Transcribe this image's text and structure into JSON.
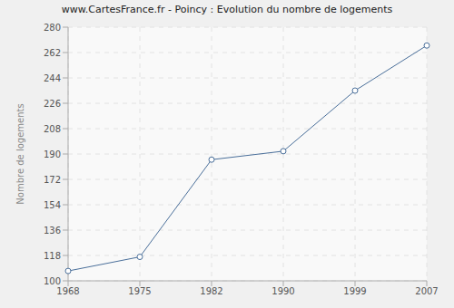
{
  "chart_data": {
    "type": "line",
    "title": "www.CartesFrance.fr - Poincy : Evolution du nombre de logements",
    "y_label": "Nombre de logements",
    "categories": [
      "1968",
      "1975",
      "1982",
      "1990",
      "1999",
      "2007"
    ],
    "values": [
      107,
      117,
      186,
      192,
      235,
      267
    ],
    "color": "#4a6f9a",
    "marker": "circle",
    "ylim": [
      100,
      280
    ],
    "yticks": [
      100,
      118,
      136,
      154,
      172,
      190,
      208,
      226,
      244,
      262,
      280
    ],
    "grid": true
  }
}
